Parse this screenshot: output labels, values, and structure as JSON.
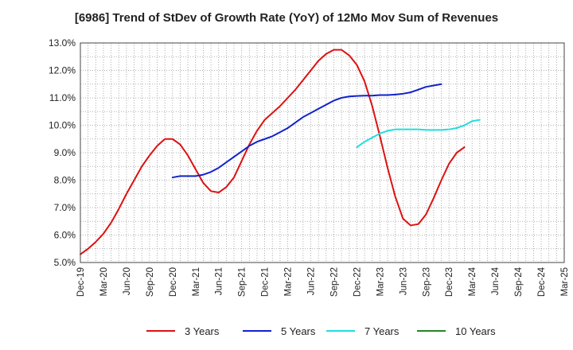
{
  "chart_data": {
    "type": "line",
    "title": "[6986]  Trend of StDev of Growth Rate (YoY) of 12Mo Mov Sum of Revenues",
    "xlabel": "",
    "ylabel": "",
    "ylim": [
      5.0,
      13.0
    ],
    "y_ticks": [
      "5.0%",
      "6.0%",
      "7.0%",
      "8.0%",
      "9.0%",
      "10.0%",
      "11.0%",
      "12.0%",
      "13.0%"
    ],
    "x_ticks": [
      "Dec-19",
      "Mar-20",
      "Jun-20",
      "Sep-20",
      "Dec-20",
      "Mar-21",
      "Jun-21",
      "Sep-21",
      "Dec-21",
      "Mar-22",
      "Jun-22",
      "Sep-22",
      "Dec-22",
      "Mar-23",
      "Jun-23",
      "Sep-23",
      "Dec-23",
      "Mar-24",
      "Jun-24",
      "Sep-24",
      "Dec-24",
      "Mar-25"
    ],
    "grid": true,
    "series": [
      {
        "name": "3 Years",
        "color": "#dd1111",
        "start_index": 0,
        "values": [
          5.3,
          5.5,
          5.75,
          6.05,
          6.45,
          6.95,
          7.5,
          8.0,
          8.5,
          8.9,
          9.25,
          9.5,
          9.5,
          9.3,
          8.9,
          8.4,
          7.9,
          7.6,
          7.55,
          7.75,
          8.1,
          8.7,
          9.3,
          9.8,
          10.2,
          10.45,
          10.7,
          11.0,
          11.3,
          11.65,
          12.0,
          12.35,
          12.6,
          12.75,
          12.75,
          12.55,
          12.2,
          11.6,
          10.7,
          9.6,
          8.45,
          7.4,
          6.6,
          6.35,
          6.4,
          6.75,
          7.35,
          8.0,
          8.6,
          9.0,
          9.2
        ]
      },
      {
        "name": "5 Years",
        "color": "#1122cc",
        "start_index": 12,
        "values": [
          8.1,
          8.15,
          8.15,
          8.15,
          8.2,
          8.3,
          8.45,
          8.65,
          8.85,
          9.05,
          9.25,
          9.4,
          9.5,
          9.6,
          9.75,
          9.9,
          10.1,
          10.3,
          10.45,
          10.6,
          10.75,
          10.9,
          11.0,
          11.05,
          11.07,
          11.08,
          11.08,
          11.1,
          11.1,
          11.12,
          11.15,
          11.2,
          11.3,
          11.4,
          11.45,
          11.5
        ]
      },
      {
        "name": "7 Years",
        "color": "#22dddd",
        "start_index": 36,
        "values": [
          9.2,
          9.4,
          9.55,
          9.7,
          9.8,
          9.85,
          9.85,
          9.85,
          9.85,
          9.83,
          9.83,
          9.83,
          9.85,
          9.9,
          10.0,
          10.15,
          10.2
        ]
      },
      {
        "name": "10 Years",
        "color": "#228822",
        "start_index": 0,
        "values": []
      }
    ]
  }
}
